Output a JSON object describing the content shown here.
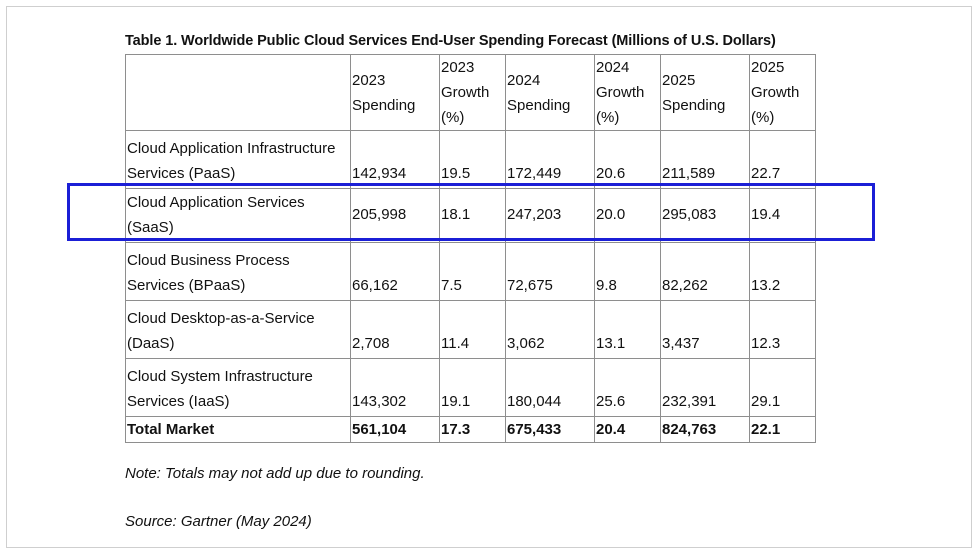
{
  "title": "Table 1. Worldwide Public Cloud Services End-User Spending Forecast (Millions of U.S. Dollars)",
  "header": {
    "blank": "",
    "col1": "2023 Spending",
    "col2": "2023 Growth (%)",
    "col3": "2024 Spending",
    "col4": "2024 Growth (%)",
    "col5": "2025 Spending",
    "col6": "2025 Growth (%)"
  },
  "rows": [
    {
      "label": "Cloud Application Infrastructure Services (PaaS)",
      "s2023": "142,934",
      "g2023": "19.5",
      "s2024": "172,449",
      "g2024": "20.6",
      "s2025": "211,589",
      "g2025": "22.7"
    },
    {
      "label": "Cloud Application Services (SaaS)",
      "s2023": "205,998",
      "g2023": "18.1",
      "s2024": "247,203",
      "g2024": "20.0",
      "s2025": "295,083",
      "g2025": "19.4"
    },
    {
      "label": "Cloud Business Process Services (BPaaS)",
      "s2023": "66,162",
      "g2023": "7.5",
      "s2024": "72,675",
      "g2024": "9.8",
      "s2025": "82,262",
      "g2025": "13.2"
    },
    {
      "label": "Cloud Desktop-as-a-Service (DaaS)",
      "s2023": "2,708",
      "g2023": "11.4",
      "s2024": "3,062",
      "g2024": "13.1",
      "s2025": "3,437",
      "g2025": "12.3"
    },
    {
      "label": "Cloud System Infrastructure Services (IaaS)",
      "s2023": "143,302",
      "g2023": "19.1",
      "s2024": "180,044",
      "g2024": "25.6",
      "s2025": "232,391",
      "g2025": "29.1"
    }
  ],
  "total": {
    "label": "Total Market",
    "s2023": "561,104",
    "g2023": "17.3",
    "s2024": "675,433",
    "g2024": "20.4",
    "s2025": "824,763",
    "g2025": "22.1"
  },
  "note": "Note: Totals may not add up due to rounding.",
  "source": "Source: Gartner (May 2024)",
  "colors": {
    "highlight": "#1b1fd6",
    "border": "#8e8e8e"
  }
}
